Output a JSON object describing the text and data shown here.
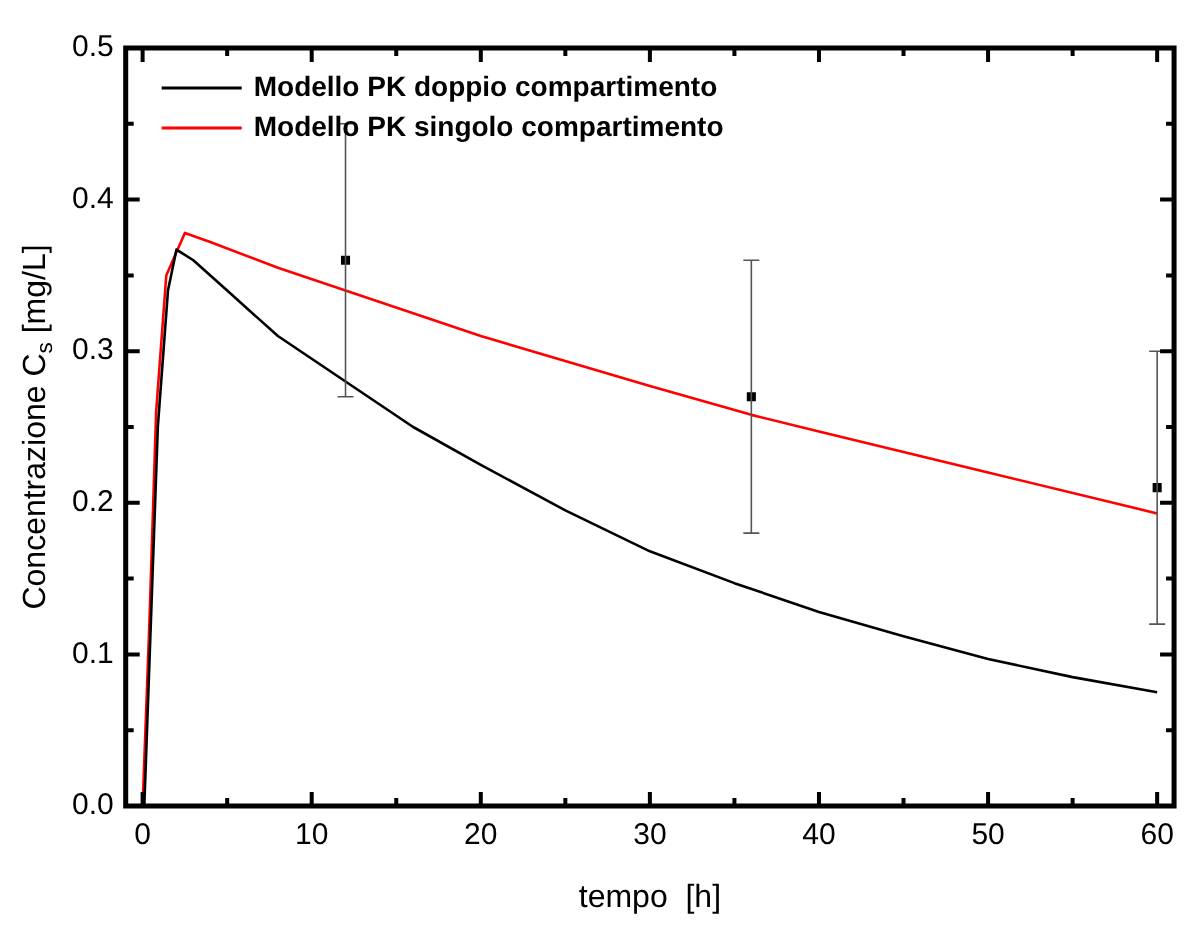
{
  "chart_data": {
    "type": "line",
    "xlabel": "tempo  [h]",
    "ylabel": "Concentrazione C$_{s}$ [mg/L]",
    "legend": "top left",
    "xlim": [
      -1,
      61
    ],
    "xticks": [
      0,
      {
        "value": 5,
        "label": null
      },
      10,
      {
        "value": 15,
        "label": null
      },
      20,
      {
        "value": 25,
        "label": null
      },
      30,
      {
        "value": 35,
        "label": null
      },
      40,
      {
        "value": 45,
        "label": null
      },
      50,
      {
        "value": 55,
        "label": null
      },
      60
    ],
    "ylim": [
      0,
      0.5
    ],
    "yticks": [
      {
        "value": 0,
        "label": "0.0"
      },
      {
        "value": 0.05,
        "label": null
      },
      0.1,
      {
        "value": 0.15,
        "label": null
      },
      0.2,
      {
        "value": 0.25,
        "label": null
      },
      0.3,
      {
        "value": 0.35,
        "label": null
      },
      0.4,
      {
        "value": 0.45,
        "label": null
      },
      0.5
    ],
    "series": [
      {
        "name": "Modello PK doppio compartimento",
        "color": "#000000",
        "x": [
          0.1,
          0.9,
          1.5,
          2,
          3,
          5,
          8,
          12,
          16,
          20,
          25,
          30,
          35,
          40,
          45,
          50,
          55,
          60
        ],
        "values": [
          0,
          0.25,
          0.34,
          0.367,
          0.36,
          0.34,
          0.31,
          0.28,
          0.25,
          0.225,
          0.195,
          0.168,
          0.147,
          0.128,
          0.112,
          0.097,
          0.085,
          0.075
        ]
      },
      {
        "name": "Modello PK singolo compartimento",
        "color": "#ff0000",
        "x": [
          0,
          0.4,
          0.8,
          1.4,
          2.5,
          4,
          8,
          12,
          20,
          30,
          36,
          40,
          50,
          60
        ],
        "values": [
          0,
          0.12,
          0.26,
          0.35,
          0.378,
          0.372,
          0.355,
          0.34,
          0.31,
          0.277,
          0.258,
          0.247,
          0.22,
          0.193
        ]
      },
      {
        "type": "scatter",
        "color": "#000000",
        "marker": "square",
        "x": [
          12,
          36,
          60
        ],
        "values": [
          0.36,
          0.27,
          0.21
        ],
        "errors": [
          [
            0.27,
            0.45
          ],
          [
            0.18,
            0.36
          ],
          [
            0.12,
            0.3
          ]
        ]
      }
    ]
  }
}
